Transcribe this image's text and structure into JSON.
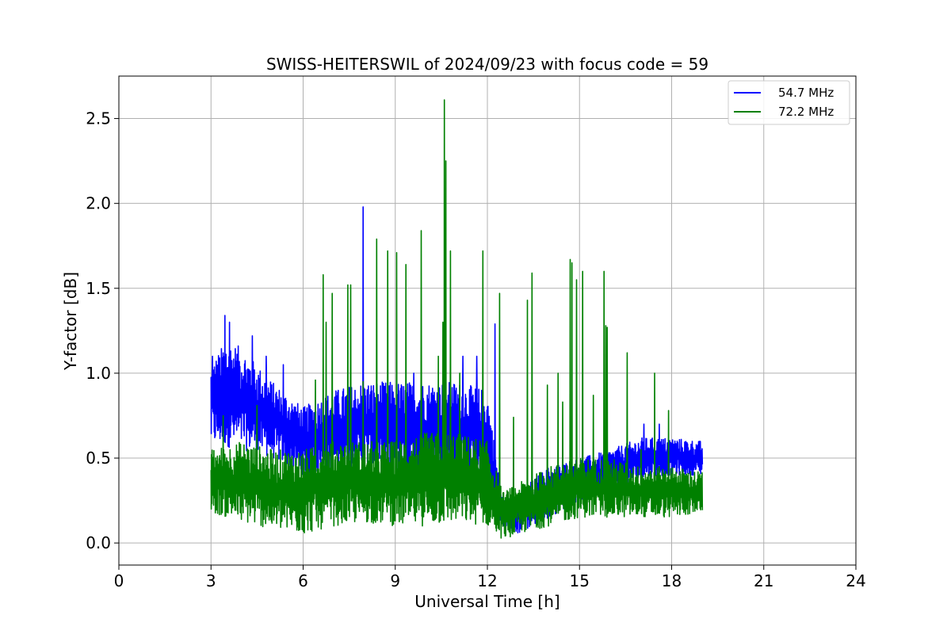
{
  "chart_data": {
    "type": "line",
    "title": "SWISS-HEITERSWIL of 2024/09/23 with focus code = 59",
    "xlabel": "Universal Time [h]",
    "ylabel": "Y-factor [dB]",
    "xlim": [
      0,
      24
    ],
    "ylim": [
      -0.13,
      2.75
    ],
    "xticks": [
      0,
      3,
      6,
      9,
      12,
      15,
      18,
      21,
      24
    ],
    "xtick_labels": [
      "0",
      "3",
      "6",
      "9",
      "12",
      "15",
      "18",
      "21",
      "24"
    ],
    "yticks": [
      0.0,
      0.5,
      1.0,
      1.5,
      2.0,
      2.5
    ],
    "ytick_labels": [
      "0.0",
      "0.5",
      "1.0",
      "1.5",
      "2.0",
      "2.5"
    ],
    "grid": true,
    "legend_position": "top-right",
    "series": [
      {
        "name": "54.7 MHz",
        "color": "#0000ff",
        "band_min": [
          [
            3.0,
            0.58
          ],
          [
            4.0,
            0.55
          ],
          [
            5.0,
            0.5
          ],
          [
            6.0,
            0.4
          ],
          [
            7.0,
            0.42
          ],
          [
            8.0,
            0.45
          ],
          [
            9.0,
            0.4
          ],
          [
            10.0,
            0.4
          ],
          [
            11.0,
            0.42
          ],
          [
            12.0,
            0.35
          ],
          [
            12.3,
            0.15
          ],
          [
            12.5,
            0.08
          ],
          [
            13.0,
            0.05
          ],
          [
            14.0,
            0.15
          ],
          [
            15.0,
            0.25
          ],
          [
            16.0,
            0.3
          ],
          [
            17.0,
            0.38
          ],
          [
            18.0,
            0.4
          ],
          [
            19.0,
            0.4
          ]
        ],
        "band_max": [
          [
            3.0,
            1.05
          ],
          [
            3.5,
            1.2
          ],
          [
            4.0,
            1.15
          ],
          [
            5.0,
            0.95
          ],
          [
            6.0,
            0.8
          ],
          [
            7.0,
            0.9
          ],
          [
            8.0,
            0.95
          ],
          [
            9.0,
            0.95
          ],
          [
            10.0,
            0.95
          ],
          [
            11.0,
            0.95
          ],
          [
            12.0,
            0.9
          ],
          [
            12.3,
            0.5
          ],
          [
            12.5,
            0.25
          ],
          [
            13.0,
            0.3
          ],
          [
            14.0,
            0.45
          ],
          [
            15.0,
            0.5
          ],
          [
            16.0,
            0.55
          ],
          [
            17.0,
            0.62
          ],
          [
            18.0,
            0.62
          ],
          [
            19.0,
            0.6
          ]
        ],
        "peaks": [
          [
            3.05,
            1.1
          ],
          [
            3.45,
            1.34
          ],
          [
            3.6,
            1.3
          ],
          [
            4.35,
            1.22
          ],
          [
            4.8,
            1.1
          ],
          [
            5.35,
            1.05
          ],
          [
            7.95,
            1.98
          ],
          [
            9.6,
            1.0
          ],
          [
            11.2,
            1.1
          ],
          [
            11.65,
            1.1
          ],
          [
            12.25,
            1.29
          ],
          [
            17.1,
            0.7
          ],
          [
            17.6,
            0.7
          ]
        ]
      },
      {
        "name": "72.2 MHz",
        "color": "#008000",
        "band_min": [
          [
            3.0,
            0.18
          ],
          [
            4.0,
            0.12
          ],
          [
            5.0,
            0.08
          ],
          [
            6.0,
            0.05
          ],
          [
            7.0,
            0.1
          ],
          [
            8.0,
            0.12
          ],
          [
            9.0,
            0.1
          ],
          [
            10.0,
            0.1
          ],
          [
            11.0,
            0.12
          ],
          [
            12.0,
            0.1
          ],
          [
            12.5,
            0.02
          ],
          [
            13.0,
            0.05
          ],
          [
            14.0,
            0.1
          ],
          [
            15.0,
            0.15
          ],
          [
            16.0,
            0.15
          ],
          [
            17.0,
            0.15
          ],
          [
            18.0,
            0.15
          ],
          [
            19.0,
            0.18
          ]
        ],
        "band_max": [
          [
            3.0,
            0.55
          ],
          [
            4.0,
            0.6
          ],
          [
            5.0,
            0.55
          ],
          [
            6.0,
            0.55
          ],
          [
            7.0,
            0.6
          ],
          [
            8.0,
            0.6
          ],
          [
            9.0,
            0.6
          ],
          [
            10.0,
            0.65
          ],
          [
            11.0,
            0.65
          ],
          [
            12.0,
            0.6
          ],
          [
            12.5,
            0.3
          ],
          [
            13.0,
            0.35
          ],
          [
            14.0,
            0.45
          ],
          [
            15.0,
            0.5
          ],
          [
            16.0,
            0.5
          ],
          [
            17.0,
            0.45
          ],
          [
            18.0,
            0.45
          ],
          [
            19.0,
            0.42
          ]
        ],
        "peaks": [
          [
            3.4,
            0.75
          ],
          [
            4.5,
            0.81
          ],
          [
            6.4,
            0.96
          ],
          [
            6.65,
            1.58
          ],
          [
            6.75,
            1.3
          ],
          [
            6.95,
            1.47
          ],
          [
            7.45,
            1.52
          ],
          [
            7.55,
            1.52
          ],
          [
            7.95,
            0.95
          ],
          [
            8.4,
            1.79
          ],
          [
            8.75,
            1.72
          ],
          [
            9.05,
            1.71
          ],
          [
            9.35,
            1.64
          ],
          [
            9.85,
            1.84
          ],
          [
            10.4,
            1.1
          ],
          [
            10.55,
            1.3
          ],
          [
            10.6,
            2.61
          ],
          [
            10.65,
            2.25
          ],
          [
            10.8,
            1.72
          ],
          [
            11.1,
            1.0
          ],
          [
            11.85,
            1.72
          ],
          [
            12.4,
            1.47
          ],
          [
            12.85,
            0.74
          ],
          [
            13.3,
            1.43
          ],
          [
            13.45,
            1.59
          ],
          [
            13.95,
            0.93
          ],
          [
            14.3,
            1.0
          ],
          [
            14.45,
            0.83
          ],
          [
            14.7,
            1.67
          ],
          [
            14.75,
            1.65
          ],
          [
            14.9,
            1.55
          ],
          [
            15.1,
            1.6
          ],
          [
            15.45,
            0.87
          ],
          [
            15.8,
            1.6
          ],
          [
            15.85,
            1.28
          ],
          [
            15.9,
            1.27
          ],
          [
            16.55,
            1.12
          ],
          [
            17.0,
            0.55
          ],
          [
            17.45,
            1.0
          ],
          [
            17.9,
            0.78
          ]
        ]
      }
    ]
  }
}
